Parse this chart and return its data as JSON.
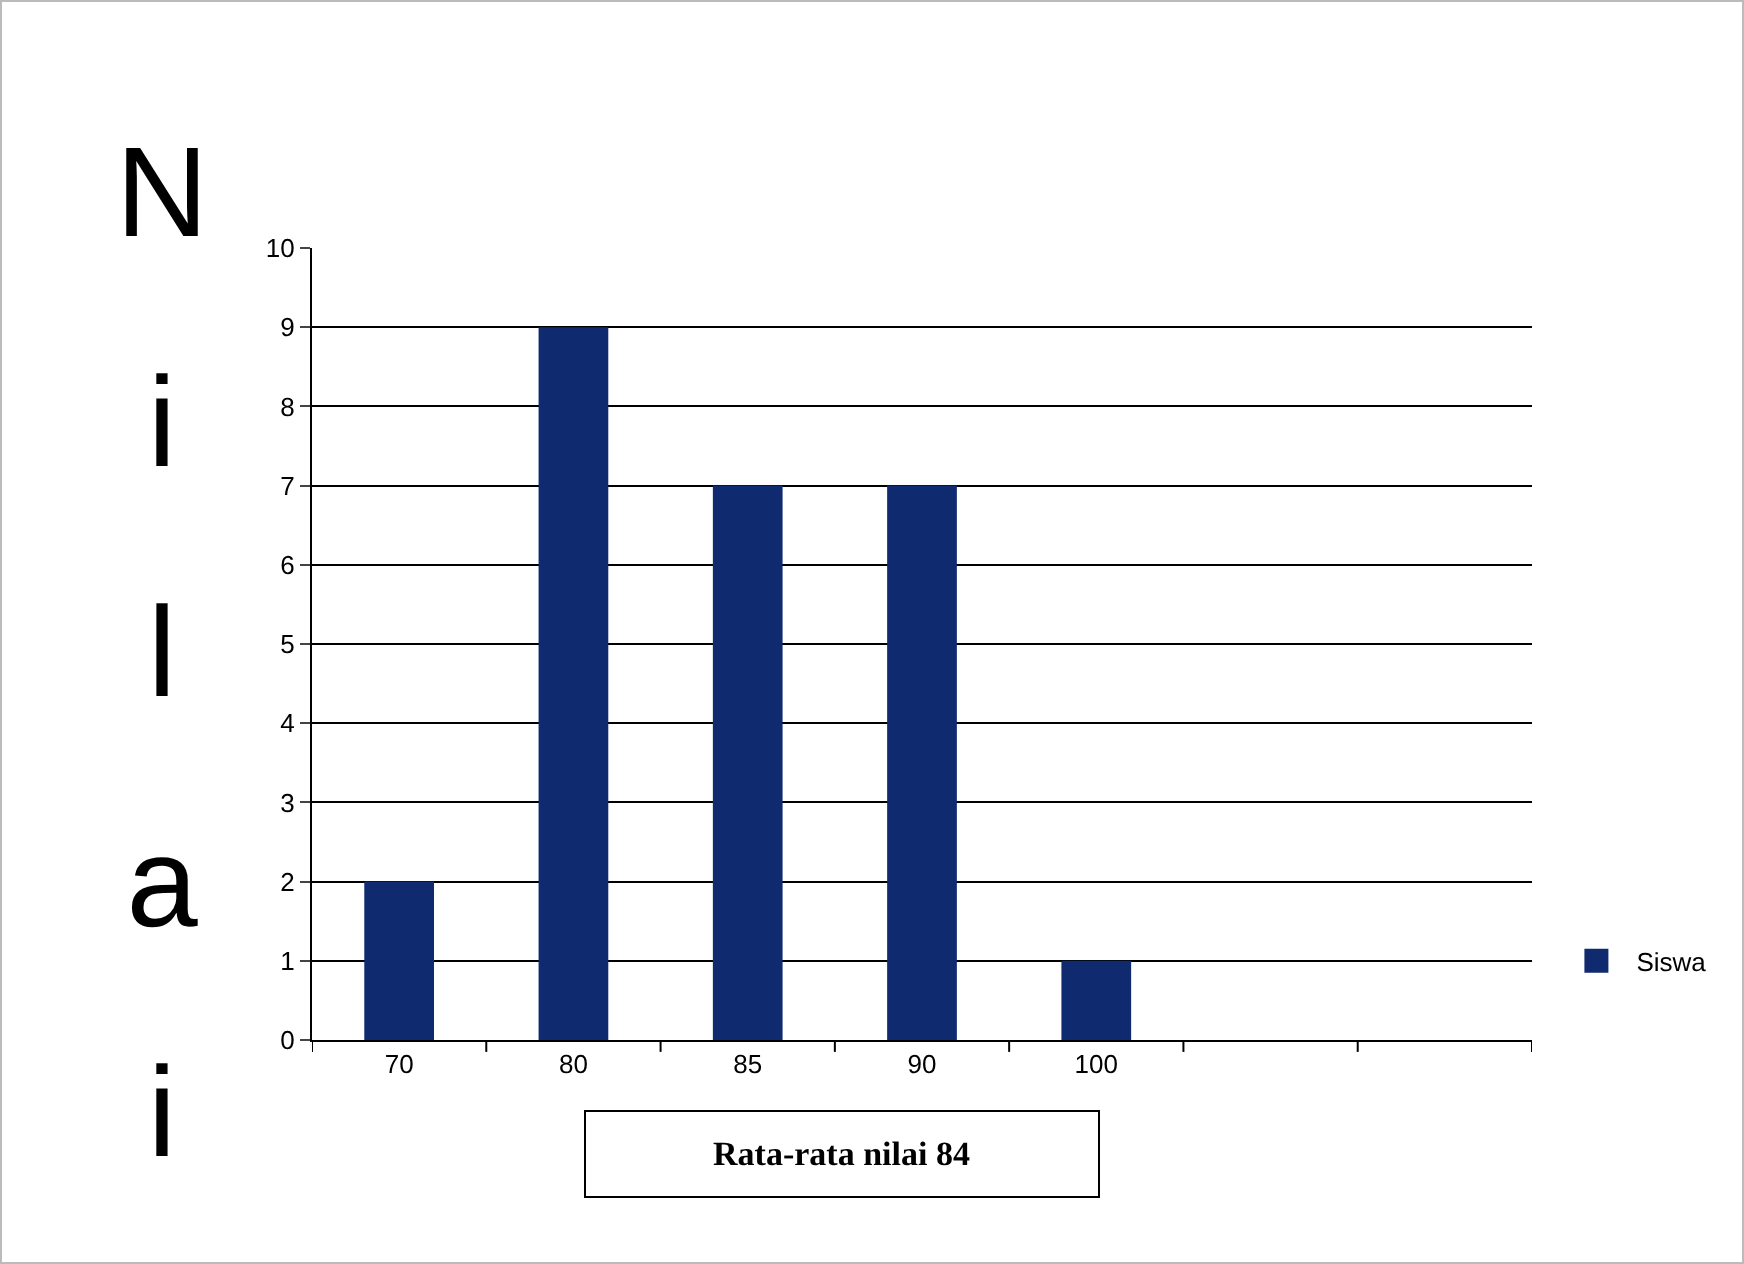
{
  "chart_data": {
    "type": "bar",
    "ylabel": "Nilai",
    "categories": [
      "70",
      "80",
      "85",
      "90",
      "100",
      null,
      null
    ],
    "series": [
      {
        "name": "Siswa",
        "color": "#0f2a6e",
        "values": [
          2,
          9,
          7,
          7,
          1,
          null,
          null
        ]
      }
    ],
    "ylim": [
      0,
      10
    ],
    "yticks": [
      0,
      1,
      2,
      3,
      4,
      5,
      6,
      7,
      8,
      9,
      10
    ],
    "grid": "y",
    "legend": "right",
    "annotations": [
      "Rata-rata nilai 84"
    ]
  }
}
